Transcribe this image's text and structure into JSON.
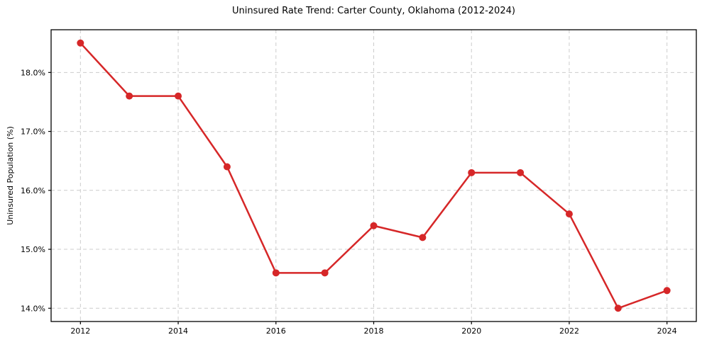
{
  "chart_data": {
    "type": "line",
    "title": "Uninsured Rate Trend: Carter County, Oklahoma (2012-2024)",
    "xlabel": "",
    "ylabel": "Uninsured Population (%)",
    "x": [
      2012,
      2013,
      2014,
      2015,
      2016,
      2017,
      2018,
      2019,
      2020,
      2021,
      2022,
      2023,
      2024
    ],
    "values": [
      18.5,
      17.6,
      17.6,
      16.4,
      14.6,
      14.6,
      15.4,
      15.2,
      16.3,
      16.3,
      15.6,
      14.0,
      14.3
    ],
    "series_name": "Uninsured Rate",
    "xlim": [
      2011.4,
      2024.6
    ],
    "ylim": [
      13.775,
      18.725
    ],
    "x_ticks": [
      2012,
      2014,
      2016,
      2018,
      2020,
      2022,
      2024
    ],
    "y_ticks": [
      14.0,
      15.0,
      16.0,
      17.0,
      18.0
    ],
    "y_tick_suffix": "%",
    "grid": true,
    "grid_style": "dashed",
    "legend": "none",
    "colors": {
      "line": "#d62728",
      "marker": "#d62728",
      "grid": "#cccccc",
      "spine": "#000000",
      "background": "#ffffff"
    }
  }
}
